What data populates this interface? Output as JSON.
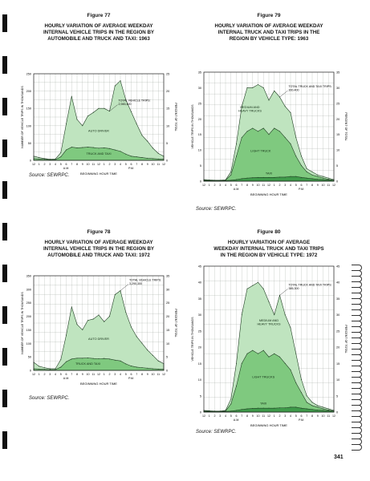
{
  "page_number": "341",
  "colors": {
    "light_fill": "#bfe4bf",
    "mid_fill": "#7fc97f",
    "dark_fill": "#3f9a4a",
    "paper": "#ffffff",
    "grid": "#9aa39a"
  },
  "hour_ticks": [
    "12",
    "1",
    "2",
    "3",
    "4",
    "5",
    "6",
    "7",
    "8",
    "9",
    "10",
    "11",
    "12",
    "1",
    "2",
    "3",
    "4",
    "5",
    "6",
    "7",
    "8",
    "9",
    "10",
    "11",
    "12"
  ],
  "chart_data": [
    {
      "id": "fig77",
      "type": "area",
      "figure_label": "Figure 77",
      "title": "HOURLY VARIATION OF AVERAGE WEEKDAY\nINTERNAL VEHICLE TRIPS IN THE REGION BY\nAUTOMOBILE AND TRUCK AND TAXI: 1963",
      "ylabel": "NUMBER OF VEHICLE TRIPS IN THOUSANDS",
      "ylabel_right": "PERCENT OF TOTAL",
      "xlabel": "BEGINNING HOUR TIME",
      "am_label": "A.M.",
      "pm_label": "P.M.",
      "ylim": [
        0,
        250
      ],
      "y_ticks": [
        "0",
        "50",
        "100",
        "150",
        "200",
        "250"
      ],
      "y_ticks_right": [
        "0",
        "5",
        "10",
        "15",
        "20",
        "25"
      ],
      "x": [
        0,
        1,
        2,
        3,
        4,
        5,
        6,
        7,
        8,
        9,
        10,
        11,
        12,
        13,
        14,
        15,
        16,
        17,
        18,
        19,
        20,
        21,
        22,
        23,
        24
      ],
      "series": [
        {
          "name": "TOTAL VEHICLE TRIPS: 2,945,400",
          "values": [
            12,
            8,
            5,
            3,
            4,
            22,
            105,
            185,
            118,
            100,
            128,
            138,
            150,
            150,
            142,
            215,
            230,
            175,
            140,
            105,
            72,
            55,
            35,
            20,
            12
          ]
        },
        {
          "name": "TRUCK AND TAXI",
          "values": [
            5,
            4,
            3,
            2,
            2,
            10,
            30,
            38,
            36,
            37,
            38,
            37,
            35,
            36,
            34,
            30,
            26,
            18,
            12,
            10,
            8,
            6,
            5,
            4,
            3
          ]
        }
      ],
      "area_labels": [
        "AUTO DRIVER",
        "TRUCK AND TAXI"
      ],
      "source": "Source: SEWRPC."
    },
    {
      "id": "fig79",
      "type": "area",
      "figure_label": "Figure 79",
      "title": "HOURLY VARIATION OF AVERAGE WEEKDAY\nINTERNAL TRUCK AND TAXI TRIPS IN THE\nREGION BY VEHICLE TYPE: 1963",
      "ylabel": "VEHICLE TRIPS IN THOUSANDS",
      "ylabel_right": "PERCENT OF TOTAL",
      "xlabel": "BEGINNING HOUR TIME",
      "am_label": "A.M.",
      "pm_label": "P.M.",
      "ylim": [
        0,
        35
      ],
      "y_ticks": [
        "0",
        "5",
        "10",
        "15",
        "20",
        "25",
        "30",
        "35"
      ],
      "y_ticks_right": [
        "0",
        "5",
        "10",
        "15",
        "20",
        "25",
        "30",
        "35"
      ],
      "x": [
        0,
        1,
        2,
        3,
        4,
        5,
        6,
        7,
        8,
        9,
        10,
        11,
        12,
        13,
        14,
        15,
        16,
        17,
        18,
        19,
        20,
        21,
        22,
        23,
        24
      ],
      "series": [
        {
          "name": "TOTAL TRUCK AND TAXI TRIPS: 300,400",
          "values": [
            0.5,
            0.4,
            0.3,
            0.3,
            0.4,
            3,
            12,
            24,
            30,
            30,
            31,
            30,
            26,
            29,
            27,
            24,
            22,
            14,
            8,
            4,
            3,
            2,
            1.5,
            1,
            0.5
          ]
        },
        {
          "name": "LIGHT TRUCK",
          "values": [
            0.3,
            0.2,
            0.2,
            0.2,
            0.3,
            2,
            8,
            14,
            16,
            17,
            16,
            17,
            15,
            17,
            16,
            14,
            12,
            8,
            5,
            3,
            2,
            1.5,
            1,
            0.6,
            0.3
          ]
        },
        {
          "name": "TAXI",
          "values": [
            0.2,
            0.2,
            0.2,
            0.2,
            0.2,
            0.3,
            0.5,
            0.8,
            1,
            1.1,
            1.2,
            1.2,
            1.2,
            1.2,
            1.3,
            1.3,
            1.5,
            1.5,
            1.2,
            1,
            0.8,
            0.6,
            0.5,
            0.4,
            0.3
          ]
        }
      ],
      "area_labels": [
        "MEDIUM AND HEAVY TRUCKS",
        "LIGHT TRUCK",
        "TAXI"
      ],
      "source": "Source: SEWRPC."
    },
    {
      "id": "fig78",
      "type": "area",
      "figure_label": "Figure 78",
      "title": "HOURLY VARIATION OF AVERAGE WEEKDAY\nINTERNAL VEHICLE TRIPS IN THE REGION BY\nAUTOMOBILE AND TRUCK AND TAXI: 1972",
      "ylabel": "NUMBER OF VEHICLE TRIPS IN THOUSANDS",
      "ylabel_right": "PERCENT OF TOTAL",
      "xlabel": "BEGINNING HOUR TIME",
      "am_label": "A.M.",
      "pm_label": "P.M.",
      "ylim": [
        0,
        350
      ],
      "y_ticks": [
        "0",
        "50",
        "100",
        "150",
        "200",
        "250",
        "300",
        "350"
      ],
      "y_ticks_right": [
        "0",
        "5",
        "10",
        "15",
        "20",
        "25",
        "30",
        "35"
      ],
      "x": [
        0,
        1,
        2,
        3,
        4,
        5,
        6,
        7,
        8,
        9,
        10,
        11,
        12,
        13,
        14,
        15,
        16,
        17,
        18,
        19,
        20,
        21,
        22,
        23,
        24
      ],
      "series": [
        {
          "name": "TOTAL VEHICLE TRIPS: 3,290,300",
          "values": [
            30,
            15,
            10,
            6,
            6,
            40,
            130,
            235,
            170,
            150,
            185,
            190,
            205,
            180,
            200,
            280,
            295,
            215,
            160,
            125,
            100,
            75,
            55,
            35,
            25
          ]
        },
        {
          "name": "TRUCK AND TAXI",
          "values": [
            6,
            5,
            4,
            3,
            3,
            12,
            32,
            42,
            45,
            45,
            46,
            44,
            43,
            44,
            42,
            38,
            35,
            24,
            16,
            12,
            10,
            8,
            6,
            5,
            4
          ]
        }
      ],
      "area_labels": [
        "AUTO DRIVER",
        "TRUCK AND TAXI"
      ],
      "source": "Source: SEWRPC."
    },
    {
      "id": "fig80",
      "type": "area",
      "figure_label": "Figure 80",
      "title": "HOURLY VARIATION OF AVERAGE\nWEEKDAY INTERNAL TRUCK AND TAXI TRIPS\nIN THE REGION BY VEHICLE TYPE: 1972",
      "ylabel": "VEHICLE TRIPS IN THOUSANDS",
      "ylabel_right": "PERCENT OF TOTAL",
      "xlabel": "BEGINNING HOUR TIME",
      "am_label": "A.M.",
      "pm_label": "P.M.",
      "ylim": [
        0,
        45
      ],
      "y_ticks": [
        "0",
        "5",
        "10",
        "15",
        "20",
        "25",
        "30",
        "35",
        "40",
        "45"
      ],
      "y_ticks_right": [
        "0",
        "5",
        "10",
        "15",
        "20",
        "25",
        "30",
        "35",
        "40",
        "45"
      ],
      "x": [
        0,
        1,
        2,
        3,
        4,
        5,
        6,
        7,
        8,
        9,
        10,
        11,
        12,
        13,
        14,
        15,
        16,
        17,
        18,
        19,
        20,
        21,
        22,
        23,
        24
      ],
      "series": [
        {
          "name": "TOTAL TRUCK AND TAXI TRIPS: 385,300",
          "values": [
            0.5,
            0.4,
            0.3,
            0.3,
            0.5,
            4,
            15,
            30,
            38,
            39,
            40,
            38,
            34,
            30,
            36,
            30,
            26,
            18,
            10,
            5,
            3,
            2,
            1.5,
            1,
            0.5
          ]
        },
        {
          "name": "LIGHT TRUCKS",
          "values": [
            0.3,
            0.3,
            0.2,
            0.2,
            0.3,
            2.5,
            8,
            15,
            18,
            19,
            18,
            19,
            17,
            18,
            17,
            15,
            13,
            9,
            6,
            3,
            2,
            1.5,
            1,
            0.6,
            0.3
          ]
        },
        {
          "name": "TAXI",
          "values": [
            0.2,
            0.2,
            0.2,
            0.2,
            0.2,
            0.3,
            0.5,
            0.8,
            1,
            1.1,
            1.2,
            1.2,
            1.2,
            1.2,
            1.3,
            1.3,
            1.5,
            1.5,
            1.2,
            1,
            0.8,
            0.6,
            0.5,
            0.4,
            0.3
          ]
        }
      ],
      "area_labels": [
        "MEDIUM AND HEAVY TRUCKS",
        "LIGHT TRUCKS",
        "TAXI"
      ],
      "source": "Source: SEWRPC."
    }
  ]
}
